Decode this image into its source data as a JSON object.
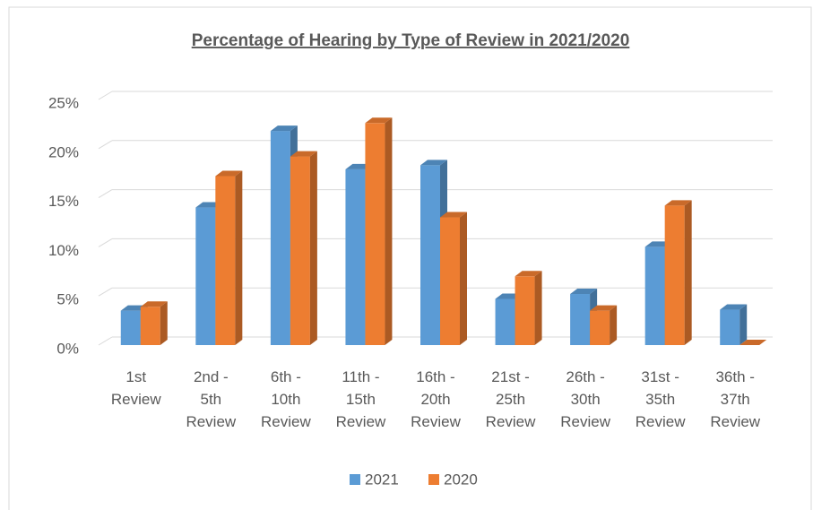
{
  "chart_data": {
    "type": "bar3d",
    "title": "Percentage of Hearing by Type of Review in 2021/2020",
    "categories": [
      "1st Review",
      "2nd - 5th Review",
      "6th - 10th Review",
      "11th - 15th Review",
      "16th - 20th Review",
      "21st - 25th Review",
      "26th - 30th Review",
      "31st - 35th Review",
      "36th - 37th Review"
    ],
    "series": [
      {
        "name": "2021",
        "color": "#5b9bd5",
        "values": [
          3.5,
          14.0,
          21.8,
          17.9,
          18.3,
          4.7,
          5.2,
          10.0,
          3.6
        ]
      },
      {
        "name": "2020",
        "color": "#ed7d31",
        "values": [
          3.9,
          17.2,
          19.2,
          22.6,
          13.0,
          7.0,
          3.5,
          14.2,
          0
        ]
      }
    ],
    "ylim": [
      0,
      25
    ],
    "yticks": [
      {
        "value": 0,
        "label": "0%"
      },
      {
        "value": 5,
        "label": "5%"
      },
      {
        "value": 10,
        "label": "10%"
      },
      {
        "value": 15,
        "label": "15%"
      },
      {
        "value": 20,
        "label": "20%"
      },
      {
        "value": 25,
        "label": "25%"
      }
    ],
    "grid": true,
    "legend": "bottom"
  }
}
